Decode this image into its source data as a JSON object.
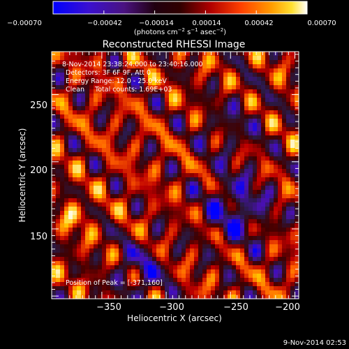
{
  "chart_data": {
    "type": "heatmap",
    "title": "Reconstructed RHESSI Image",
    "xlabel": "Heliocentric X (arcsec)",
    "ylabel": "Heliocentric Y (arcsec)",
    "xlim": [
      -389,
      -197
    ],
    "ylim": [
      98,
      282
    ],
    "xticks": [
      -350,
      -300,
      -250,
      -200
    ],
    "yticks": [
      150,
      200,
      250
    ],
    "xtick_labels": [
      "−350",
      "−300",
      "−250",
      "−200"
    ],
    "ytick_labels": [
      "150",
      "200",
      "250"
    ],
    "colorbar": {
      "range": [
        -0.0007,
        0.0007
      ],
      "ticks": [
        "−0.00070",
        "−0.00042",
        "−0.00014",
        "0.00014",
        "0.00042",
        "0.00070"
      ],
      "unit_parts": {
        "p1": "(photons cm",
        "e1": "−2",
        "p2": " s",
        "e2": "−1",
        "p3": " asec",
        "e3": "−2",
        "p4": ")"
      },
      "colors": [
        "#0000ff",
        "#4a10b0",
        "#2a1a44",
        "#400000",
        "#c00000",
        "#ff6000",
        "#ffd000",
        "#ffffff"
      ]
    },
    "annotations": {
      "time_range": "8-Nov-2014 23:38:24.000 to 23:40:16.000",
      "detectors": "Detectors: 3F 6F 9F, Att 0",
      "energy": "Energy Range: 12.0 - 25.0 keV",
      "clean": "Clean     Total counts: 1.69E+03",
      "peak": "Position of Peak = [-371,160]"
    },
    "peak": [
      -371,
      160
    ],
    "grid": false,
    "legend": "none",
    "timestamp": "9-Nov-2014 02:53"
  }
}
